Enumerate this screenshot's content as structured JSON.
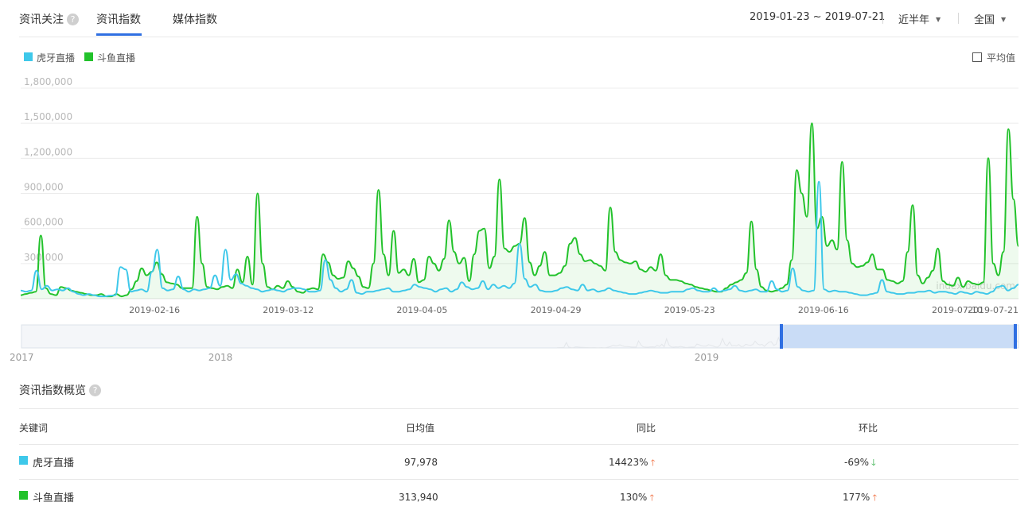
{
  "header": {
    "title": "资讯关注",
    "help_icon": "?",
    "tabs": [
      {
        "label": "资讯指数",
        "active": true
      },
      {
        "label": "媒体指数",
        "active": false
      }
    ],
    "date_range": "2019-01-23 ~ 2019-07-21",
    "period_select": "近半年",
    "region_select": "全国"
  },
  "legend": {
    "series": [
      {
        "label": "虎牙直播",
        "color": "#3ec8ea"
      },
      {
        "label": "斗鱼直播",
        "color": "#22c22b"
      }
    ],
    "average_label": "平均值"
  },
  "chart_data": {
    "type": "line",
    "y_ticks": [
      "1,800,000",
      "1,500,000",
      "1,200,000",
      "900,000",
      "600,000",
      "300,000"
    ],
    "ylim": [
      0,
      1800000
    ],
    "x_ticks": [
      "2019-02-16",
      "2019-03-12",
      "2019-04-05",
      "2019-04-29",
      "2019-05-23",
      "2019-06-16",
      "2019-07-10",
      "2019-07-21"
    ],
    "x_start": "2019-01-23",
    "x_end": "2019-07-21",
    "watermark": "index.baidu.com",
    "series": [
      {
        "name": "虎牙直播",
        "color": "#3ec8ea",
        "values": [
          70000,
          60000,
          70000,
          240000,
          80000,
          110000,
          70000,
          80000,
          70000,
          90000,
          60000,
          40000,
          30000,
          40000,
          30000,
          20000,
          20000,
          25000,
          30000,
          270000,
          250000,
          60000,
          70000,
          80000,
          60000,
          230000,
          420000,
          90000,
          70000,
          80000,
          190000,
          80000,
          60000,
          80000,
          70000,
          80000,
          90000,
          200000,
          110000,
          420000,
          160000,
          210000,
          130000,
          110000,
          90000,
          80000,
          60000,
          70000,
          80000,
          70000,
          60000,
          80000,
          90000,
          90000,
          80000,
          60000,
          60000,
          70000,
          330000,
          160000,
          90000,
          60000,
          80000,
          160000,
          50000,
          40000,
          60000,
          60000,
          70000,
          80000,
          90000,
          60000,
          60000,
          70000,
          80000,
          120000,
          100000,
          90000,
          80000,
          60000,
          80000,
          90000,
          60000,
          80000,
          140000,
          100000,
          80000,
          90000,
          150000,
          80000,
          120000,
          90000,
          110000,
          90000,
          130000,
          470000,
          170000,
          100000,
          120000,
          70000,
          60000,
          60000,
          70000,
          90000,
          100000,
          80000,
          70000,
          120000,
          70000,
          80000,
          60000,
          70000,
          90000,
          70000,
          60000,
          50000,
          40000,
          40000,
          50000,
          60000,
          70000,
          60000,
          50000,
          50000,
          60000,
          60000,
          60000,
          80000,
          90000,
          70000,
          60000,
          60000,
          90000,
          60000,
          70000,
          80000,
          110000,
          70000,
          60000,
          70000,
          80000,
          60000,
          60000,
          150000,
          80000,
          60000,
          70000,
          260000,
          100000,
          70000,
          60000,
          70000,
          1000000,
          80000,
          60000,
          70000,
          60000,
          60000,
          50000,
          40000,
          30000,
          30000,
          40000,
          50000,
          160000,
          60000,
          50000,
          40000,
          40000,
          50000,
          50000,
          60000,
          60000,
          70000,
          50000,
          60000,
          60000,
          50000,
          40000,
          60000,
          50000,
          40000,
          60000,
          50000,
          40000,
          60000,
          100000,
          110000,
          70000,
          90000,
          120000
        ]
      },
      {
        "name": "斗鱼直播",
        "color": "#22c22b",
        "values": [
          30000,
          40000,
          50000,
          60000,
          540000,
          90000,
          40000,
          30000,
          100000,
          90000,
          70000,
          60000,
          50000,
          40000,
          30000,
          30000,
          40000,
          20000,
          20000,
          40000,
          20000,
          30000,
          80000,
          150000,
          260000,
          200000,
          230000,
          310000,
          210000,
          140000,
          130000,
          120000,
          90000,
          90000,
          90000,
          700000,
          300000,
          100000,
          90000,
          80000,
          100000,
          110000,
          90000,
          250000,
          140000,
          360000,
          120000,
          900000,
          300000,
          100000,
          80000,
          110000,
          90000,
          150000,
          100000,
          60000,
          50000,
          80000,
          90000,
          80000,
          380000,
          310000,
          200000,
          170000,
          180000,
          320000,
          260000,
          190000,
          100000,
          90000,
          300000,
          930000,
          380000,
          200000,
          580000,
          220000,
          250000,
          200000,
          340000,
          140000,
          160000,
          360000,
          300000,
          240000,
          340000,
          670000,
          400000,
          300000,
          350000,
          150000,
          380000,
          580000,
          600000,
          260000,
          360000,
          1020000,
          430000,
          400000,
          450000,
          470000,
          690000,
          310000,
          200000,
          280000,
          400000,
          200000,
          200000,
          220000,
          280000,
          470000,
          520000,
          380000,
          320000,
          330000,
          300000,
          280000,
          240000,
          780000,
          400000,
          330000,
          310000,
          300000,
          320000,
          250000,
          230000,
          270000,
          240000,
          380000,
          200000,
          160000,
          160000,
          150000,
          130000,
          120000,
          100000,
          90000,
          80000,
          70000,
          60000,
          60000,
          90000,
          120000,
          140000,
          160000,
          220000,
          660000,
          250000,
          100000,
          70000,
          60000,
          70000,
          90000,
          120000,
          330000,
          1100000,
          900000,
          700000,
          1500000,
          600000,
          700000,
          450000,
          500000,
          420000,
          1170000,
          500000,
          300000,
          270000,
          280000,
          310000,
          380000,
          250000,
          250000,
          160000,
          150000,
          130000,
          150000,
          400000,
          800000,
          200000,
          130000,
          180000,
          240000,
          430000,
          150000,
          120000,
          110000,
          180000,
          100000,
          150000,
          130000,
          120000,
          140000,
          1200000,
          300000,
          200000,
          400000,
          1450000,
          850000,
          450000
        ]
      }
    ]
  },
  "navigator": {
    "year_labels": [
      "2017",
      "2018",
      "2019"
    ]
  },
  "overview": {
    "title": "资讯指数概览",
    "columns": [
      "关键词",
      "日均值",
      "同比",
      "环比"
    ],
    "rows": [
      {
        "keyword": "虎牙直播",
        "color": "#3ec8ea",
        "avg": "97,978",
        "yoy": "14423%",
        "yoy_dir": "up",
        "mom": "-69%",
        "mom_dir": "down"
      },
      {
        "keyword": "斗鱼直播",
        "color": "#22c22b",
        "avg": "313,940",
        "yoy": "130%",
        "yoy_dir": "up",
        "mom": "177%",
        "mom_dir": "up"
      }
    ]
  }
}
